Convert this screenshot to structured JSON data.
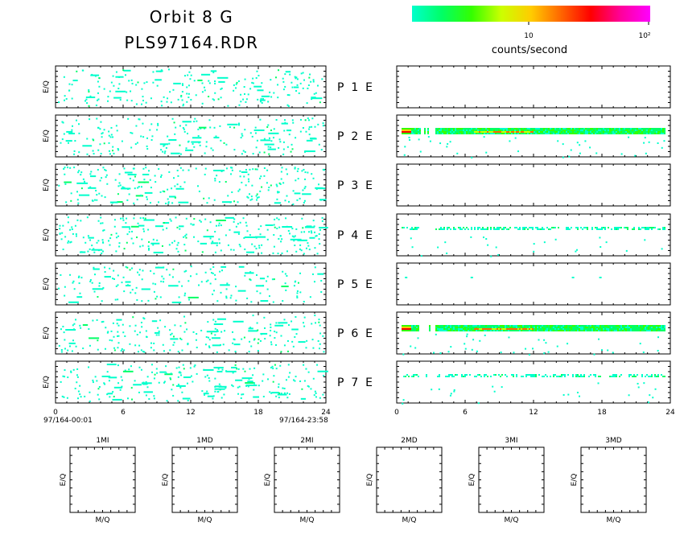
{
  "chart_data": {
    "type": "heatmap",
    "title": "Orbit 8 G",
    "subtitle": "PLS97164.RDR",
    "colorbar": {
      "label": "counts/second",
      "ticks": [
        "10",
        "10²"
      ],
      "scale": "log",
      "colors": [
        "#00ffcc",
        "#00ff66",
        "#33ff00",
        "#ccff00",
        "#ffcc00",
        "#ff6600",
        "#ff0000",
        "#ff0099",
        "#ff00ff"
      ]
    },
    "ylabel": "E/Q",
    "x_ticks": [
      "0",
      "6",
      "12",
      "18",
      "24"
    ],
    "xlim": [
      0,
      24
    ],
    "grid": false,
    "time_start": "97/164-00:01",
    "time_end": "97/164-23:58",
    "rows": [
      {
        "label": "P  1  E",
        "left_fill": 0.1,
        "right_activity": "none"
      },
      {
        "label": "P  2  E",
        "left_fill": 0.1,
        "right_activity": "dense-band"
      },
      {
        "label": "P  3  E",
        "left_fill": 0.11,
        "right_activity": "none"
      },
      {
        "label": "P  4  E",
        "left_fill": 0.12,
        "right_activity": "moderate"
      },
      {
        "label": "P  5  E",
        "left_fill": 0.08,
        "right_activity": "sparse"
      },
      {
        "label": "P  6  E",
        "left_fill": 0.1,
        "right_activity": "dense-band"
      },
      {
        "label": "P  7  E",
        "left_fill": 0.11,
        "right_activity": "moderate"
      }
    ],
    "mq_panels": [
      {
        "title": "1MI",
        "xlabel": "M/Q",
        "ylabel": "E/Q"
      },
      {
        "title": "1MD",
        "xlabel": "M/Q",
        "ylabel": "E/Q"
      },
      {
        "title": "2MI",
        "xlabel": "M/Q",
        "ylabel": "E/Q"
      },
      {
        "title": "2MD",
        "xlabel": "M/Q",
        "ylabel": "E/Q"
      },
      {
        "title": "3MI",
        "xlabel": "M/Q",
        "ylabel": "E/Q"
      },
      {
        "title": "3MD",
        "xlabel": "M/Q",
        "ylabel": "E/Q"
      }
    ]
  }
}
